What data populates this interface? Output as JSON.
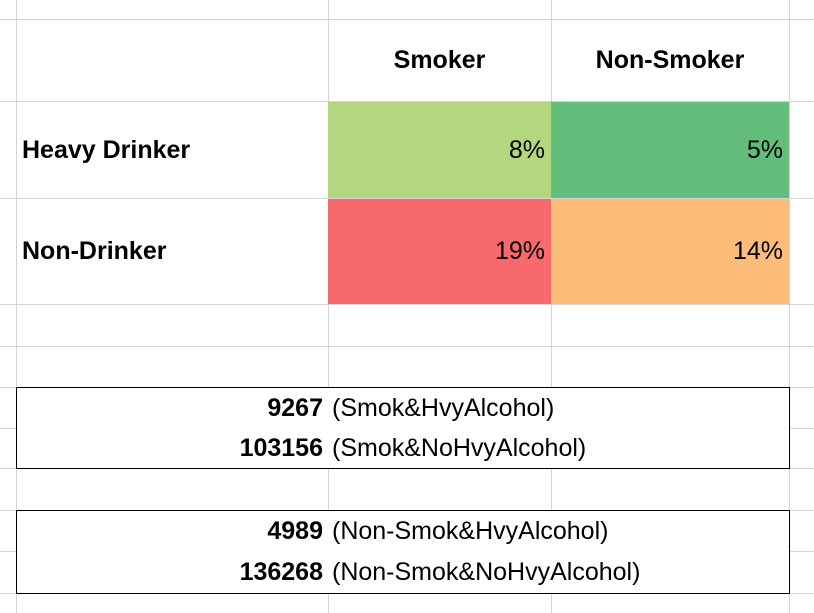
{
  "table": {
    "col_headers": [
      "Smoker",
      "Non-Smoker"
    ],
    "rows": [
      {
        "label": "Heavy Drinker",
        "cells": [
          "8%",
          "5%"
        ]
      },
      {
        "label": "Non-Drinker",
        "cells": [
          "19%",
          "14%"
        ]
      }
    ],
    "colors": {
      "heavy_smoker": "#B4D67E",
      "heavy_nonsmoker": "#63BE7B",
      "non_smoker": "#F8696B",
      "non_nonsmoker": "#FDBD7A"
    }
  },
  "counts": {
    "group1": [
      {
        "value": "9267",
        "label": "(Smok&HvyAlcohol)"
      },
      {
        "value": "103156",
        "label": "(Smok&NoHvyAlcohol)"
      }
    ],
    "group2": [
      {
        "value": "4989",
        "label": "(Non-Smok&HvyAlcohol)"
      },
      {
        "value": "136268",
        "label": "(Non-Smok&NoHvyAlcohol)"
      }
    ]
  }
}
